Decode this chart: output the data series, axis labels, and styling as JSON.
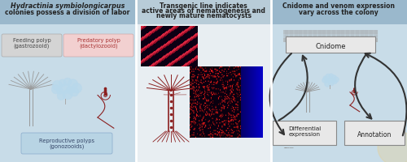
{
  "panel1_bg": "#c8dce8",
  "panel2_bg": "#e8eef2",
  "panel3_bg": "#c8dce8",
  "header1_bg": "#9ab8cc",
  "header2_bg": "#b8ccd8",
  "header3_bg": "#9ab8cc",
  "header_color": "#222222",
  "panel1_title_line1": "Hydractinia symbiolongicarpus",
  "panel1_title_line2": "colonies possess a division of labor",
  "panel2_title_line1": "Transgenic line indicates",
  "panel2_title_line2": "active areas of nematogenesis and",
  "panel2_title_line3": "newly mature nematocysts",
  "panel3_title_line1": "Cnidome and venom expression",
  "panel3_title_line2": "vary across the colony",
  "label_feeding": "Feeding polyp\n(gastrozooid)",
  "label_predatory": "Predatory polyp\n(dactylozooid)",
  "label_reproductive": "Reproductive polyps\n(gonozooids)",
  "label_cnidome": "Cnidome",
  "label_diff_expr": "Differential\nexpression",
  "label_annotation": "Annotation",
  "feeding_bg": "#d4d4d4",
  "predatory_bg": "#f2d0d0",
  "reproductive_bg": "#b8d4e4",
  "box_border": "#999999",
  "arrow_color": "#333333",
  "body_color": "#8b2020",
  "line_color": "#8b2020",
  "gastrozooid_color": "#888888",
  "gonozooid_color": "#aaccdd",
  "watermark_color": "#e8d090"
}
